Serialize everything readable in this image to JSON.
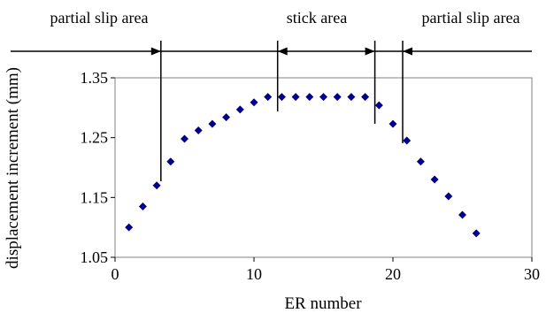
{
  "chart_data": {
    "type": "scatter",
    "xlabel": "ER number",
    "ylabel": "displacement increment (mm)",
    "xlim": [
      0,
      30
    ],
    "ylim": [
      1.05,
      1.35
    ],
    "xticks": [
      "0",
      "10",
      "20",
      "30"
    ],
    "yticks": [
      "1.05",
      "1.15",
      "1.25",
      "1.35"
    ],
    "grid": false,
    "marker_color": "#00008b",
    "x": [
      1,
      2,
      3,
      4,
      5,
      6,
      7,
      8,
      9,
      10,
      11,
      12,
      13,
      14,
      15,
      16,
      17,
      18,
      19,
      20,
      21,
      22,
      23,
      24,
      25,
      26
    ],
    "y": [
      1.1,
      1.135,
      1.17,
      1.21,
      1.248,
      1.262,
      1.273,
      1.284,
      1.297,
      1.309,
      1.318,
      1.318,
      1.318,
      1.318,
      1.318,
      1.318,
      1.318,
      1.318,
      1.304,
      1.273,
      1.245,
      1.21,
      1.18,
      1.152,
      1.121,
      1.09
    ],
    "regions": [
      {
        "label": "partial slip area",
        "from": 0,
        "to": 3.3
      },
      {
        "label": "stick area",
        "from": 11.7,
        "to": 18.7
      },
      {
        "label": "partial slip area",
        "from": 20.7,
        "to": 30
      }
    ]
  }
}
